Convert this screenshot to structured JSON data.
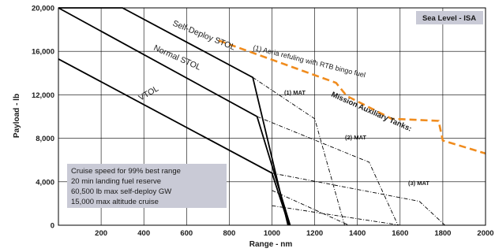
{
  "chart_data": {
    "type": "line",
    "title": "",
    "xlabel": "Range - nm",
    "ylabel": "Payload - lb",
    "xlim": [
      0,
      2000
    ],
    "ylim": [
      0,
      20000
    ],
    "x_ticks": [
      "200",
      "400",
      "600",
      "800",
      "1000",
      "1200",
      "1400",
      "1600",
      "1800",
      "2000"
    ],
    "y_ticks": [
      "0",
      "4,000",
      "8,000",
      "12,000",
      "16,000",
      "20,000"
    ],
    "grid": true,
    "condition_label": "Sea Level - ISA",
    "series": [
      {
        "name": "Self-Deploy STOL",
        "style": "solid",
        "color": "#000000",
        "x": [
          0,
          300,
          910,
          1075
        ],
        "y": [
          20000,
          20000,
          13600,
          0
        ]
      },
      {
        "name": "Normal STOL",
        "style": "solid",
        "color": "#000000",
        "x": [
          0,
          930,
          1085
        ],
        "y": [
          20000,
          10000,
          0
        ]
      },
      {
        "name": "VTOL",
        "style": "solid",
        "color": "#000000",
        "x": [
          0,
          1000,
          1080
        ],
        "y": [
          15300,
          4800,
          0
        ]
      },
      {
        "name": "",
        "style": "dash-dot",
        "color": "#000000",
        "x": [
          910,
          1200,
          1340
        ],
        "y": [
          13600,
          9800,
          0
        ]
      },
      {
        "name": "",
        "style": "dash-dot",
        "color": "#000000",
        "x": [
          930,
          1455,
          1590
        ],
        "y": [
          10000,
          5800,
          0
        ]
      },
      {
        "name": "",
        "style": "dash-dot",
        "color": "#000000",
        "x": [
          1000,
          1690,
          1810
        ],
        "y": [
          4800,
          2200,
          0
        ]
      },
      {
        "name": "",
        "style": "dash-dot",
        "color": "#000000",
        "x": [
          1000,
          1360
        ],
        "y": [
          3200,
          0
        ]
      },
      {
        "name": "",
        "style": "dash-dot",
        "color": "#000000",
        "x": [
          1000,
          1600
        ],
        "y": [
          1800,
          0
        ]
      },
      {
        "name": "(1) Aeria refuling with RTB bingo fuel",
        "style": "dashed",
        "color": "#f08c1e",
        "x": [
          750,
          1300,
          1350,
          1560,
          1780,
          1800,
          2000
        ],
        "y": [
          17000,
          13100,
          11900,
          9800,
          9600,
          7800,
          6600
        ]
      }
    ],
    "annotations": {
      "self_deploy": "Self-Deploy STOL",
      "normal_stol": "Normal STOL",
      "vtol": "VTOL",
      "refuel": "(1) Aeria refuling with RTB bingo fuel",
      "mat1": "(1) MAT",
      "mat2": "(2) MAT",
      "mat3": "(3) MAT",
      "mission_tanks": "Mission Auxiliary Tanks:"
    },
    "notes": [
      "Cruise speed for 99% best range",
      "20 min landing fuel reserve",
      "60,500 lb max self-deploy GW",
      "15,000 max altitude cruise"
    ]
  }
}
